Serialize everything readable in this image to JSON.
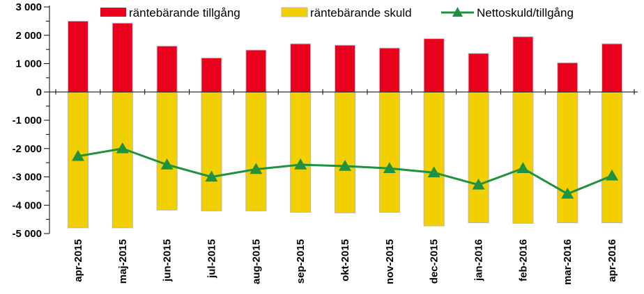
{
  "chart_data": {
    "type": "bar",
    "categories": [
      "apr-2015",
      "maj-2015",
      "jun-2015",
      "jul-2015",
      "aug-2015",
      "sep-2015",
      "okt-2015",
      "nov-2015",
      "dec-2015",
      "jan-2016",
      "feb-2016",
      "mar-2016",
      "apr-2016"
    ],
    "series": [
      {
        "name": "räntebärande tillgång",
        "type": "bar",
        "color": "#e8001c",
        "values": [
          2500,
          2430,
          1620,
          1200,
          1480,
          1700,
          1650,
          1550,
          1880,
          1360,
          1950,
          1030,
          1700
        ]
      },
      {
        "name": "räntebärande skuld",
        "type": "bar",
        "color": "#f2cf00",
        "values": [
          -4800,
          -4800,
          -4170,
          -4200,
          -4200,
          -4250,
          -4270,
          -4250,
          -4730,
          -4620,
          -4640,
          -4620,
          -4620
        ]
      },
      {
        "name": "Nettoskuld/tillgång",
        "type": "line",
        "color": "#1f9140",
        "values": [
          -2270,
          -2000,
          -2570,
          -3000,
          -2730,
          -2570,
          -2620,
          -2700,
          -2850,
          -3280,
          -2700,
          -3600,
          -2960
        ]
      }
    ],
    "ylim": [
      -5000,
      3000
    ],
    "yticks": [
      3000,
      2000,
      1000,
      0,
      -1000,
      -2000,
      -3000,
      -4000,
      -5000
    ],
    "ytick_labels": [
      "3 000",
      "2 000",
      "1 000",
      "0",
      "-1 000",
      "-2 000",
      "-3 000",
      "-4 000",
      "-5 000"
    ],
    "grid": false,
    "legend_position": "top"
  }
}
